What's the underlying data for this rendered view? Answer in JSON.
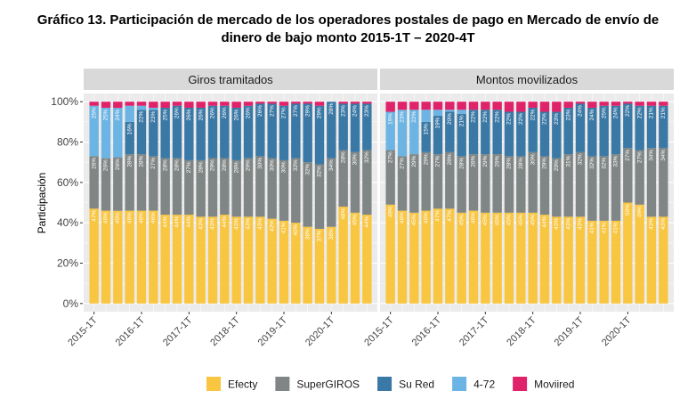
{
  "title_line1": "Gráfico 13. Participación de mercado de los operadores postales de pago en Mercado de envío de",
  "title_line2": "dinero de bajo monto 2015-1T – 2020-4T",
  "chart_data": {
    "type": "bar",
    "stacked": true,
    "ylabel": "Participación",
    "y_ticks": [
      "0%",
      "20%",
      "40%",
      "60%",
      "80%",
      "100%"
    ],
    "ylim": [
      0,
      100
    ],
    "x_tick_labels": [
      "2015-1T",
      "2016-1T",
      "2017-1T",
      "2018-1T",
      "2019-1T",
      "2020-1T"
    ],
    "legend": [
      {
        "name": "Efecty",
        "color": "#F9C642"
      },
      {
        "name": "SuperGIROS",
        "color": "#7F8685"
      },
      {
        "name": "Su Red",
        "color": "#3A78A5"
      },
      {
        "name": "4-72",
        "color": "#6CB4E3"
      },
      {
        "name": "Moviired",
        "color": "#E0226A"
      }
    ],
    "panels": [
      {
        "title": "Giros tramitados",
        "efecty": [
          47,
          46,
          45,
          46,
          46,
          46,
          44,
          44,
          44,
          43,
          43,
          44,
          43,
          43,
          43,
          42,
          41,
          40,
          38,
          37,
          38,
          48,
          45,
          44
        ],
        "supergiros": [
          26,
          26,
          26,
          28,
          28,
          27,
          28,
          28,
          27,
          28,
          29,
          28,
          28,
          29,
          30,
          30,
          30,
          32,
          32,
          32,
          34,
          28,
          30,
          32
        ],
        "sured": [
          0,
          0,
          0,
          16,
          22,
          23,
          25,
          26,
          26,
          26,
          26,
          26,
          26,
          26,
          26,
          27,
          27,
          27,
          29,
          29,
          28,
          23,
          24,
          23
        ],
        "s472": [
          25,
          25,
          24,
          8,
          2,
          1,
          0,
          0,
          0,
          0,
          0,
          0,
          0,
          0,
          0,
          0,
          0,
          0,
          0,
          0,
          0,
          0,
          0,
          0
        ],
        "moviired": [
          2,
          3,
          3,
          2,
          2,
          3,
          3,
          2,
          3,
          3,
          2,
          2,
          3,
          2,
          1,
          1,
          2,
          1,
          1,
          2,
          0,
          1,
          1,
          1
        ],
        "labels": {
          "efecty": [
            "47%",
            "46%",
            "45%",
            "46%",
            "46%",
            "46%",
            "44%",
            "44%",
            "44%",
            "43%",
            "43%",
            "44%",
            "43%",
            "43%",
            "43%",
            "42%",
            "41%",
            "40%",
            "38%",
            "37%",
            "38%",
            "48%",
            "45%",
            "44%"
          ],
          "supergiros": [
            "26%",
            "26%",
            "26%",
            "28%",
            "28%",
            "27%",
            "28%",
            "28%",
            "27%",
            "28%",
            "29%",
            "28%",
            "28%",
            "29%",
            "30%",
            "30%",
            "30%",
            "32%",
            "32%",
            "32%",
            "34%",
            "28%",
            "30%",
            "32%"
          ],
          "sured": [
            "",
            "",
            "",
            "16%",
            "22%",
            "23%",
            "25%",
            "26%",
            "26%",
            "26%",
            "26%",
            "26%",
            "26%",
            "26%",
            "26%",
            "27%",
            "27%",
            "27%",
            "29%",
            "29%",
            "28%",
            "23%",
            "24%",
            "23%"
          ],
          "s472": [
            "25%",
            "25%",
            "24%",
            "",
            "",
            "",
            "",
            "",
            "",
            "",
            "",
            "",
            "",
            "",
            "",
            "",
            "",
            "",
            "",
            "",
            "",
            "",
            "",
            ""
          ]
        }
      },
      {
        "title": "Montos movilizados",
        "efecty": [
          49,
          46,
          45,
          46,
          47,
          47,
          45,
          46,
          45,
          45,
          45,
          45,
          45,
          44,
          43,
          43,
          43,
          41,
          41,
          41,
          50,
          49,
          43,
          43
        ],
        "supergiros": [
          27,
          27,
          29,
          29,
          27,
          28,
          28,
          28,
          29,
          29,
          28,
          28,
          30,
          29,
          29,
          31,
          32,
          32,
          32,
          33,
          27,
          27,
          34,
          34
        ],
        "sured": [
          0,
          0,
          0,
          15,
          19,
          20,
          21,
          22,
          22,
          22,
          22,
          22,
          22,
          22,
          23,
          23,
          24,
          24,
          25,
          24,
          22,
          22,
          21,
          21
        ],
        "s472": [
          19,
          23,
          22,
          6,
          3,
          1,
          2,
          0,
          0,
          0,
          0,
          0,
          0,
          0,
          0,
          0,
          0,
          0,
          0,
          0,
          0,
          0,
          0,
          0
        ],
        "moviired": [
          5,
          4,
          4,
          4,
          4,
          4,
          4,
          4,
          4,
          4,
          5,
          5,
          3,
          5,
          5,
          3,
          1,
          3,
          2,
          2,
          1,
          2,
          2,
          2
        ],
        "labels": {
          "efecty": [
            "49%",
            "46%",
            "45%",
            "46%",
            "47%",
            "47%",
            "45%",
            "46%",
            "45%",
            "45%",
            "45%",
            "45%",
            "45%",
            "44%",
            "43%",
            "43%",
            "43%",
            "41%",
            "41%",
            "41%",
            "50%",
            "49%",
            "43%",
            "43%"
          ],
          "supergiros": [
            "27%",
            "27%",
            "29%",
            "29%",
            "27%",
            "28%",
            "28%",
            "28%",
            "29%",
            "29%",
            "28%",
            "28%",
            "30%",
            "29%",
            "29%",
            "31%",
            "32%",
            "32%",
            "32%",
            "33%",
            "27%",
            "27%",
            "34%",
            "34%"
          ],
          "sured": [
            "",
            "",
            "",
            "15%",
            "19%",
            "20%",
            "21%",
            "22%",
            "22%",
            "22%",
            "22%",
            "22%",
            "22%",
            "22%",
            "23%",
            "23%",
            "24%",
            "24%",
            "25%",
            "24%",
            "22%",
            "22%",
            "21%",
            "21%"
          ],
          "s472": [
            "19%",
            "23%",
            "22%",
            "",
            "",
            "",
            "",
            "",
            "",
            "",
            "",
            "",
            "",
            "",
            "",
            "",
            "",
            "",
            "",
            "",
            "",
            "",
            "",
            ""
          ]
        }
      }
    ]
  }
}
